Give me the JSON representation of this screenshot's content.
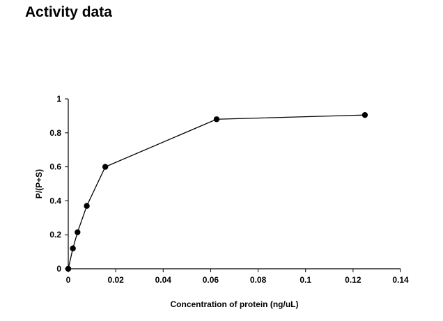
{
  "page": {
    "title": "Activity data"
  },
  "chart_data": {
    "type": "line",
    "title": "",
    "xlabel": "Concentration of protein (ng/uL)",
    "ylabel": "P/(P+S)",
    "xlim": [
      0,
      0.14
    ],
    "ylim": [
      0,
      1
    ],
    "x_ticks": [
      0,
      0.02,
      0.04,
      0.06,
      0.08,
      0.1,
      0.12,
      0.14
    ],
    "x_tick_labels": [
      "0",
      "0.02",
      "0.04",
      "0.06",
      "0.08",
      "0.1",
      "0.12",
      "0.14"
    ],
    "y_ticks": [
      0,
      0.2,
      0.4,
      0.6,
      0.8,
      1
    ],
    "y_tick_labels": [
      "0",
      "0.2",
      "0.4",
      "0.6",
      "0.8",
      "1"
    ],
    "grid": false,
    "legend": "none",
    "series": [
      {
        "x": [
          0,
          0.00195,
          0.0039,
          0.0078,
          0.0156,
          0.0625,
          0.125
        ],
        "y": [
          0,
          0.12,
          0.215,
          0.37,
          0.6,
          0.88,
          0.905
        ],
        "color": "#000000",
        "marker": "circle"
      }
    ]
  }
}
